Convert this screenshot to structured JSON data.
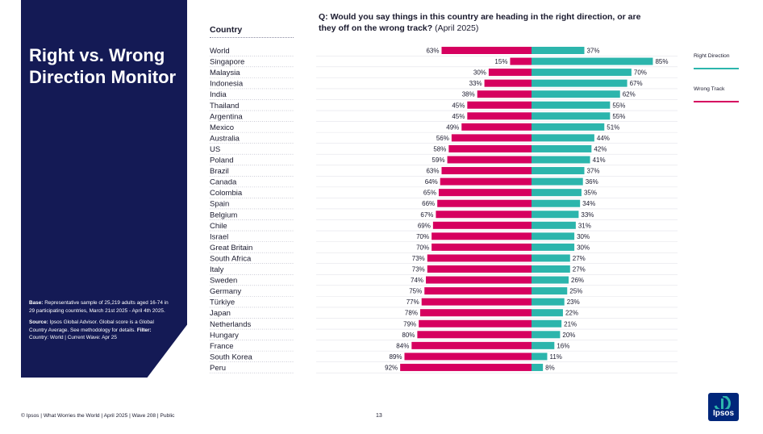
{
  "sidebar": {
    "title": "Right vs. Wrong Direction Monitor",
    "base_label": "Base:",
    "base_text": "Representative sample of 25,219 adults aged 16-74 in 29 participating countries, March 21st 2025 - April 4th 2025.",
    "source_label": "Source:",
    "source_text": "Ipsos Global Advisor. Global score is a Global Country Average. See methodology for details.",
    "filter_label": "Filter:",
    "filter_text": "Country: World | Current Wave: Apr 25"
  },
  "header": {
    "country_column": "Country",
    "question_bold": "Q: Would you say things in this country are heading in the right direction, or are they off on the wrong track?",
    "question_tail": " (April 2025)"
  },
  "colors": {
    "right_direction": "#2cb5ac",
    "wrong_track": "#d6005f",
    "sidebar": "#141a55"
  },
  "chart_data": {
    "type": "bar",
    "orientation": "horizontal-diverging",
    "categories": [
      "World",
      "Singapore",
      "Malaysia",
      "Indonesia",
      "India",
      "Thailand",
      "Argentina",
      "Mexico",
      "Australia",
      "US",
      "Poland",
      "Brazil",
      "Canada",
      "Colombia",
      "Spain",
      "Belgium",
      "Chile",
      "Israel",
      "Great Britain",
      "South Africa",
      "Italy",
      "Sweden",
      "Germany",
      "Türkiye",
      "Japan",
      "Netherlands",
      "Hungary",
      "France",
      "South Korea",
      "Peru"
    ],
    "series": [
      {
        "name": "Wrong Track",
        "values": [
          63,
          15,
          30,
          33,
          38,
          45,
          45,
          49,
          56,
          58,
          59,
          63,
          64,
          65,
          66,
          67,
          69,
          70,
          70,
          73,
          73,
          74,
          75,
          77,
          78,
          79,
          80,
          84,
          89,
          92
        ]
      },
      {
        "name": "Right Direction",
        "values": [
          37,
          85,
          70,
          67,
          62,
          55,
          55,
          51,
          44,
          42,
          41,
          37,
          36,
          35,
          34,
          33,
          31,
          30,
          30,
          27,
          27,
          26,
          25,
          23,
          22,
          21,
          20,
          16,
          11,
          8
        ]
      }
    ],
    "unit": "%",
    "legend": [
      "Right Direction",
      "Wrong Track"
    ],
    "legend_position": "right",
    "grid": false
  },
  "footer": {
    "text": "© Ipsos | What Worries the World | April 2025 | Wave 208 | Public",
    "page_number": "13",
    "logo_text": "Ipsos"
  }
}
